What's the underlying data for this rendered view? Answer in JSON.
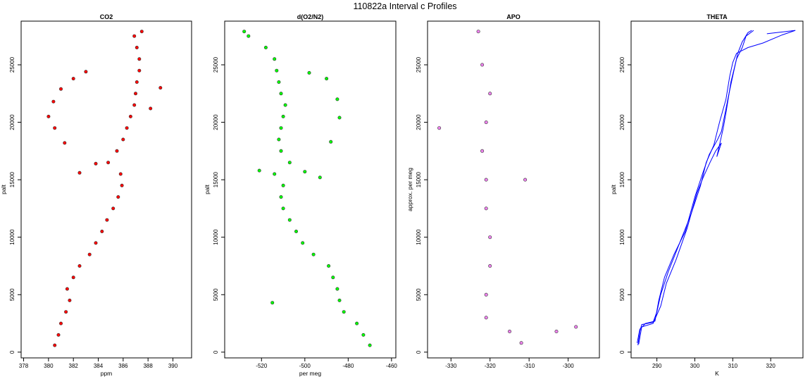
{
  "page": {
    "title": "110822a   Interval c Profiles"
  },
  "chart_data": [
    {
      "type": "scatter",
      "title": "CO2",
      "xlabel": "ppm",
      "ylabel": "palt",
      "xlim": [
        377.8,
        391.5
      ],
      "ylim": [
        -500,
        28800
      ],
      "xticks": [
        378,
        380,
        382,
        384,
        386,
        388,
        390
      ],
      "yticks": [
        0,
        5000,
        10000,
        15000,
        20000,
        25000
      ],
      "color": "#ff0000",
      "series": [
        {
          "values": [
            [
              380.5,
              600
            ],
            [
              380.8,
              1500
            ],
            [
              381,
              2500
            ],
            [
              381.4,
              3500
            ],
            [
              381.7,
              4500
            ],
            [
              381.5,
              5500
            ],
            [
              382,
              6500
            ],
            [
              382.5,
              7500
            ],
            [
              383.3,
              8500
            ],
            [
              383.8,
              9500
            ],
            [
              384.3,
              10500
            ],
            [
              384.7,
              11500
            ],
            [
              385.2,
              12500
            ],
            [
              385.6,
              13500
            ],
            [
              385.9,
              14500
            ],
            [
              385.8,
              15500
            ],
            [
              384.8,
              16500
            ],
            [
              385.5,
              17500
            ],
            [
              386,
              18500
            ],
            [
              386.3,
              19500
            ],
            [
              386.6,
              20500
            ],
            [
              386.9,
              21500
            ],
            [
              387,
              22500
            ],
            [
              387.1,
              23500
            ],
            [
              387.3,
              24500
            ],
            [
              387.3,
              25500
            ],
            [
              387.1,
              26500
            ],
            [
              386.9,
              27500
            ],
            [
              387.5,
              27900
            ],
            [
              382.5,
              15600
            ],
            [
              383.8,
              16400
            ],
            [
              381.3,
              18200
            ],
            [
              380.5,
              19500
            ],
            [
              380,
              20500
            ],
            [
              380.4,
              21800
            ],
            [
              381,
              22900
            ],
            [
              382,
              23800
            ],
            [
              383,
              24400
            ],
            [
              389,
              23000
            ],
            [
              388.2,
              21200
            ]
          ]
        }
      ]
    },
    {
      "type": "scatter",
      "title": "d(O2/N2)",
      "xlabel": "per meg",
      "ylabel": "palt",
      "xlim": [
        -537,
        -458
      ],
      "ylim": [
        -500,
        28800
      ],
      "xticks": [
        -520,
        -500,
        -480,
        -460
      ],
      "yticks": [
        0,
        5000,
        10000,
        15000,
        20000,
        25000
      ],
      "color": "#00ff00",
      "series": [
        {
          "values": [
            [
              -470,
              600
            ],
            [
              -473,
              1500
            ],
            [
              -476,
              2500
            ],
            [
              -482,
              3500
            ],
            [
              -484,
              4500
            ],
            [
              -485,
              5500
            ],
            [
              -487,
              6500
            ],
            [
              -489,
              7500
            ],
            [
              -496,
              8500
            ],
            [
              -501,
              9500
            ],
            [
              -504,
              10500
            ],
            [
              -507,
              11500
            ],
            [
              -510,
              12500
            ],
            [
              -511,
              13500
            ],
            [
              -510,
              14500
            ],
            [
              -514,
              15500
            ],
            [
              -507,
              16500
            ],
            [
              -511,
              17500
            ],
            [
              -512,
              18500
            ],
            [
              -511,
              19500
            ],
            [
              -510,
              20500
            ],
            [
              -509,
              21500
            ],
            [
              -511,
              22500
            ],
            [
              -512,
              23500
            ],
            [
              -513,
              24500
            ],
            [
              -514,
              25500
            ],
            [
              -518,
              26500
            ],
            [
              -526,
              27500
            ],
            [
              -528,
              27900
            ],
            [
              -500,
              15700
            ],
            [
              -493,
              15200
            ],
            [
              -488,
              18300
            ],
            [
              -484,
              20400
            ],
            [
              -485,
              22000
            ],
            [
              -490,
              23800
            ],
            [
              -498,
              24300
            ],
            [
              -521,
              15800
            ],
            [
              -515,
              4300
            ]
          ]
        }
      ]
    },
    {
      "type": "scatter",
      "title": "APO",
      "xlabel": "",
      "ylabel": "approx. per meg",
      "xlim": [
        -336,
        -292
      ],
      "ylim": [
        -500,
        28800
      ],
      "xticks": [
        -330,
        -320,
        -310,
        -300
      ],
      "yticks": [
        0,
        5000,
        10000,
        15000,
        20000,
        25000
      ],
      "color": "#ee82ee",
      "series": [
        {
          "values": [
            [
              -312,
              800
            ],
            [
              -315,
              1800
            ],
            [
              -321,
              3000
            ],
            [
              -321,
              5000
            ],
            [
              -320,
              7500
            ],
            [
              -320,
              10000
            ],
            [
              -321,
              12500
            ],
            [
              -321,
              15000
            ],
            [
              -322,
              17500
            ],
            [
              -321,
              20000
            ],
            [
              -320,
              22500
            ],
            [
              -322,
              25000
            ],
            [
              -323,
              27900
            ],
            [
              -303,
              1800
            ],
            [
              -298,
              2200
            ],
            [
              -311,
              15000
            ],
            [
              -333,
              19500
            ]
          ]
        }
      ]
    },
    {
      "type": "line",
      "title": "THETA",
      "xlabel": "K",
      "ylabel": "palt",
      "xlim": [
        283.2,
        328.5
      ],
      "ylim": [
        -500,
        28800
      ],
      "xticks": [
        290,
        300,
        310,
        320
      ],
      "yticks": [
        0,
        5000,
        10000,
        15000,
        20000,
        25000
      ],
      "color": "#0000ff",
      "series": [
        {
          "values": [
            [
              285,
              600
            ],
            [
              285.5,
              1800
            ],
            [
              286,
              2400
            ],
            [
              289,
              2600
            ],
            [
              290,
              3500
            ],
            [
              291,
              5000
            ],
            [
              293,
              7000
            ],
            [
              296,
              9500
            ],
            [
              299,
              12000
            ],
            [
              301.5,
              14500
            ],
            [
              303,
              16500
            ],
            [
              305,
              18000
            ],
            [
              306.5,
              20000
            ],
            [
              308.2,
              22000
            ],
            [
              309.2,
              24000
            ],
            [
              310,
              25200
            ],
            [
              311,
              26000
            ],
            [
              314,
              26500
            ],
            [
              318,
              26900
            ],
            [
              323,
              27600
            ],
            [
              326.5,
              28000
            ],
            [
              324,
              27900
            ],
            [
              319,
              27700
            ]
          ]
        },
        {
          "values": [
            [
              284.8,
              800
            ],
            [
              285.5,
              2000
            ],
            [
              287,
              2500
            ],
            [
              289.5,
              2700
            ],
            [
              290.5,
              4500
            ],
            [
              292,
              6500
            ],
            [
              294.5,
              8500
            ],
            [
              297.5,
              10500
            ],
            [
              300,
              13500
            ],
            [
              302,
              15500
            ],
            [
              303.8,
              17200
            ],
            [
              306,
              18500
            ],
            [
              307,
              19200
            ],
            [
              307.8,
              20500
            ],
            [
              309,
              22500
            ],
            [
              310.3,
              24500
            ],
            [
              311.3,
              26000
            ],
            [
              312.5,
              27000
            ],
            [
              314,
              27800
            ],
            [
              315,
              28000
            ]
          ]
        },
        {
          "values": [
            [
              285.2,
              700
            ],
            [
              286,
              2200
            ],
            [
              289,
              2500
            ],
            [
              291,
              4000
            ],
            [
              292.5,
              6000
            ],
            [
              295,
              8000
            ],
            [
              298,
              10800
            ],
            [
              300.5,
              13800
            ],
            [
              302.2,
              15200
            ],
            [
              304,
              16500
            ],
            [
              305.5,
              17500
            ],
            [
              307,
              18200
            ],
            [
              305.8,
              17000
            ],
            [
              307.5,
              19500
            ],
            [
              308.3,
              21000
            ],
            [
              309.5,
              23500
            ],
            [
              311,
              25500
            ],
            [
              312.5,
              26500
            ],
            [
              313.5,
              27500
            ],
            [
              315.5,
              28000
            ]
          ]
        }
      ]
    }
  ]
}
